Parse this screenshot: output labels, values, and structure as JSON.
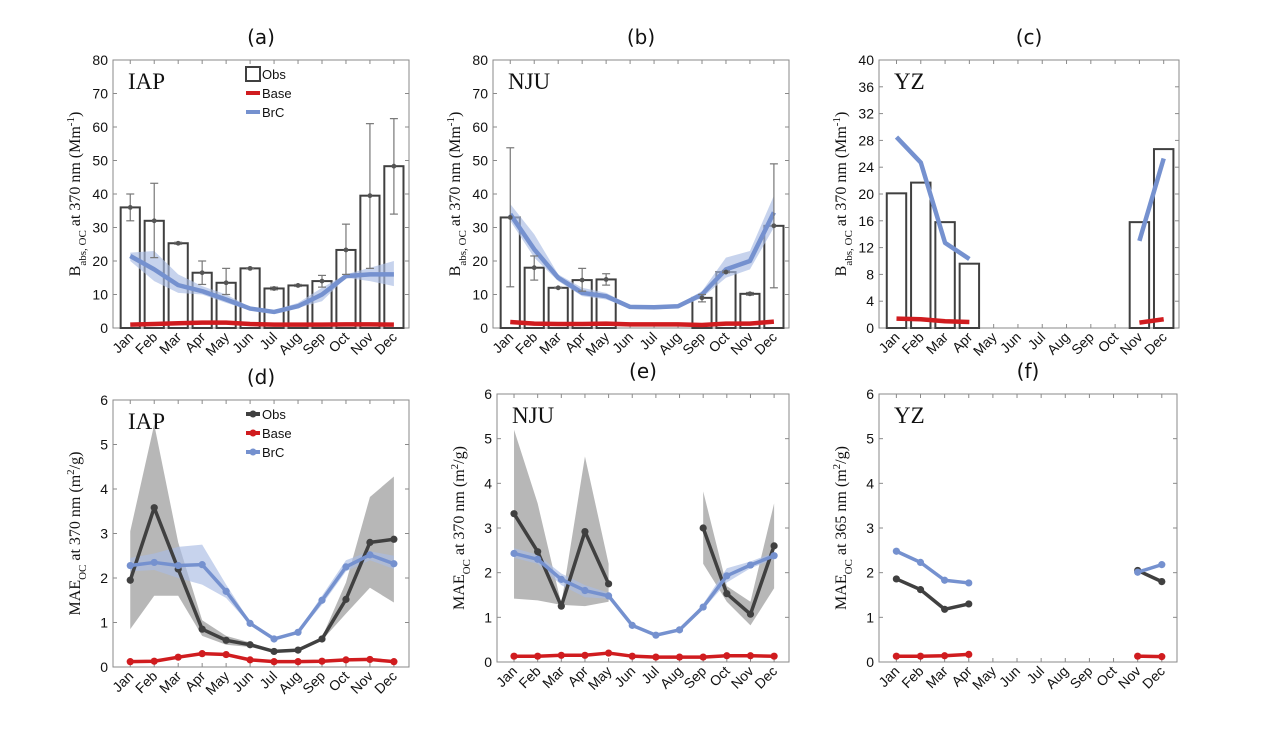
{
  "colors": {
    "obs": "#404040",
    "obs_band": "#b3b3b3",
    "base": "#d01c1f",
    "brc": "#7591cf",
    "brc_band": "#a9bbe3",
    "axis": "#8a8a8a"
  },
  "legend": {
    "obs": "Obs",
    "base": "Base",
    "brc": "BrC"
  },
  "chart_data": [
    {
      "id": "a",
      "type": "bar",
      "title": "(a)",
      "site": "IAP",
      "ylabel_main": "B",
      "ylabel_sub": "abs, OC",
      "ylabel_rest": " at 370 nm (Mm",
      "ylabel_sup": "-1",
      "ylabel_end": ")",
      "ylim": [
        0,
        80
      ],
      "yticks": [
        0,
        10,
        20,
        30,
        40,
        50,
        60,
        70,
        80
      ],
      "categories": [
        "Jan",
        "Feb",
        "Mar",
        "Apr",
        "May",
        "Jun",
        "Jul",
        "Aug",
        "Sep",
        "Oct",
        "Nov",
        "Dec"
      ],
      "legend_style": "bar",
      "obs": [
        36,
        32,
        25.3,
        16.5,
        13.5,
        17.8,
        11.8,
        12.7,
        14,
        23.3,
        39.5,
        48.3
      ],
      "obs_err_low": [
        32,
        21,
        25,
        13,
        10,
        17.6,
        11.4,
        12.4,
        12.2,
        16,
        17.8,
        34
      ],
      "obs_err_high": [
        40,
        43.2,
        25.6,
        20,
        17.8,
        18,
        12.2,
        13,
        15.7,
        31,
        61,
        62.5
      ],
      "brc": [
        21.5,
        17.5,
        12.8,
        11,
        8.5,
        5.8,
        4.8,
        6.5,
        10,
        15.5,
        16,
        16
      ],
      "brc_low": [
        20,
        14,
        10.5,
        10,
        7.5,
        5.3,
        4.2,
        6,
        8,
        15,
        14,
        12.5
      ],
      "brc_high": [
        22.5,
        23,
        16,
        12.5,
        10,
        6.3,
        5.3,
        7.5,
        12,
        16,
        18,
        20
      ],
      "base": [
        1,
        1.2,
        1.4,
        1.6,
        1.6,
        1.2,
        1,
        1,
        1,
        1.1,
        1.1,
        1
      ]
    },
    {
      "id": "b",
      "type": "bar",
      "title": "(b)",
      "site": "NJU",
      "ylabel_main": "B",
      "ylabel_sub": "abs, OC",
      "ylabel_rest": " at 370 nm (Mm",
      "ylabel_sup": "-1",
      "ylabel_end": ")",
      "ylim": [
        0,
        80
      ],
      "yticks": [
        0,
        10,
        20,
        30,
        40,
        50,
        60,
        70,
        80
      ],
      "categories": [
        "Jan",
        "Feb",
        "Mar",
        "Apr",
        "May",
        "Jun",
        "Jul",
        "Aug",
        "Sep",
        "Oct",
        "Nov",
        "Dec"
      ],
      "legend_style": "none",
      "obs": [
        33,
        18,
        12,
        14.3,
        14.5,
        null,
        null,
        null,
        9,
        16.7,
        10.2,
        30.5
      ],
      "obs_err_low": [
        12.3,
        14.3,
        11.8,
        11,
        12.8,
        null,
        null,
        null,
        7.8,
        16.5,
        9.8,
        12
      ],
      "obs_err_high": [
        53.8,
        21.5,
        12.2,
        17.8,
        16.2,
        null,
        null,
        null,
        10,
        17,
        10.6,
        49
      ],
      "brc": [
        34,
        23.5,
        15,
        10.5,
        9.5,
        6.3,
        6.2,
        6.5,
        10,
        17.5,
        20,
        34.5
      ],
      "brc_low": [
        32,
        21,
        14,
        9.5,
        8.5,
        6,
        5.5,
        6,
        9,
        15,
        17.5,
        30
      ],
      "brc_high": [
        37,
        28,
        16,
        12,
        10.5,
        6.8,
        6.8,
        7,
        11,
        21,
        23,
        39.5
      ],
      "base": [
        1.8,
        1.3,
        1.2,
        1.2,
        1.3,
        1.1,
        1.1,
        1.1,
        0.9,
        1.3,
        1.3,
        1.9
      ]
    },
    {
      "id": "c",
      "type": "bar",
      "title": "(c)",
      "site": "YZ",
      "ylabel_main": "B",
      "ylabel_sub": "abs, OC",
      "ylabel_rest": " at 370 nm (Mm",
      "ylabel_sup": "-1",
      "ylabel_end": ")",
      "ylim": [
        0,
        40
      ],
      "yticks": [
        0,
        4,
        8,
        12,
        16,
        20,
        24,
        28,
        32,
        36,
        40
      ],
      "categories": [
        "Jan",
        "Feb",
        "Mar",
        "Apr",
        "May",
        "Jun",
        "Jul",
        "Aug",
        "Sep",
        "Oct",
        "Nov",
        "Dec"
      ],
      "legend_style": "none",
      "obs": [
        20.1,
        21.7,
        15.8,
        9.6,
        null,
        null,
        null,
        null,
        null,
        null,
        15.8,
        26.7
      ],
      "obs_err_low": null,
      "obs_err_high": null,
      "brc": [
        28.5,
        24.7,
        12.7,
        10.3,
        null,
        null,
        null,
        null,
        null,
        null,
        13,
        25.3
      ],
      "brc_low": null,
      "brc_high": null,
      "base": [
        1.4,
        1.3,
        1.0,
        0.9,
        null,
        null,
        null,
        null,
        null,
        null,
        0.8,
        1.3
      ]
    },
    {
      "id": "d",
      "type": "line",
      "title": "(d)",
      "site": "IAP",
      "ylabel_main": "MAE",
      "ylabel_sub": "OC",
      "ylabel_rest": " at 370 nm (m",
      "ylabel_sup": "2",
      "ylabel_end": "/g)",
      "ylim": [
        0,
        6
      ],
      "yticks": [
        0,
        1,
        2,
        3,
        4,
        5,
        6
      ],
      "categories": [
        "Jan",
        "Feb",
        "Mar",
        "Apr",
        "May",
        "Jun",
        "Jul",
        "Aug",
        "Sep",
        "Oct",
        "Nov",
        "Dec"
      ],
      "legend_style": "line",
      "obs": [
        1.95,
        3.58,
        2.2,
        0.85,
        0.6,
        0.5,
        0.35,
        0.38,
        0.63,
        1.52,
        2.8,
        2.87
      ],
      "obs_low": [
        0.85,
        1.6,
        1.6,
        0.7,
        0.5,
        0.45,
        0.33,
        0.36,
        0.6,
        1.2,
        1.78,
        1.45
      ],
      "obs_high": [
        3.05,
        5.45,
        2.8,
        1.05,
        0.7,
        0.55,
        0.38,
        0.4,
        0.67,
        1.9,
        3.82,
        4.28
      ],
      "brc": [
        2.28,
        2.35,
        2.28,
        2.3,
        1.7,
        0.98,
        0.63,
        0.78,
        1.5,
        2.25,
        2.52,
        2.32
      ],
      "brc_low": [
        2.15,
        2.18,
        2.0,
        1.85,
        1.55,
        0.95,
        0.6,
        0.75,
        1.4,
        2.15,
        2.4,
        2.2
      ],
      "brc_high": [
        2.45,
        2.55,
        2.7,
        2.75,
        1.85,
        1.02,
        0.66,
        0.81,
        1.6,
        2.4,
        2.6,
        2.5
      ],
      "base": [
        0.12,
        0.13,
        0.22,
        0.3,
        0.28,
        0.16,
        0.12,
        0.12,
        0.13,
        0.16,
        0.17,
        0.12
      ]
    },
    {
      "id": "e",
      "type": "line",
      "title": "(e)",
      "site": "NJU",
      "ylabel_main": "MAE",
      "ylabel_sub": "OC",
      "ylabel_rest": " at 370 nm (m",
      "ylabel_sup": "2",
      "ylabel_end": "/g)",
      "ylim": [
        0,
        6
      ],
      "yticks": [
        0,
        1,
        2,
        3,
        4,
        5,
        6
      ],
      "categories": [
        "Jan",
        "Feb",
        "Mar",
        "Apr",
        "May",
        "Jun",
        "Jul",
        "Aug",
        "Sep",
        "Oct",
        "Nov",
        "Dec"
      ],
      "legend_style": "none",
      "obs": [
        3.32,
        2.47,
        1.25,
        2.92,
        1.75,
        null,
        null,
        null,
        3.0,
        1.53,
        1.07,
        2.6
      ],
      "obs_low": [
        1.42,
        1.38,
        1.28,
        1.25,
        1.35,
        null,
        null,
        null,
        2.2,
        1.35,
        0.82,
        1.65
      ],
      "obs_high": [
        5.2,
        3.55,
        1.3,
        4.6,
        2.2,
        null,
        null,
        null,
        3.82,
        1.7,
        1.35,
        3.55
      ],
      "brc": [
        2.43,
        2.3,
        1.85,
        1.6,
        1.48,
        0.82,
        0.6,
        0.72,
        1.23,
        1.93,
        2.17,
        2.38
      ],
      "brc_low": [
        2.33,
        2.2,
        1.72,
        1.45,
        1.42,
        0.8,
        0.58,
        0.7,
        1.18,
        1.78,
        2.1,
        2.3
      ],
      "brc_high": [
        2.55,
        2.4,
        1.98,
        1.72,
        1.55,
        0.85,
        0.62,
        0.74,
        1.3,
        2.1,
        2.25,
        2.45
      ],
      "base": [
        0.13,
        0.13,
        0.15,
        0.15,
        0.2,
        0.13,
        0.11,
        0.11,
        0.11,
        0.14,
        0.14,
        0.13
      ]
    },
    {
      "id": "f",
      "type": "line",
      "title": "(f)",
      "site": "YZ",
      "ylabel_main": "MAE",
      "ylabel_sub": "OC",
      "ylabel_rest": " at 365 nm (m",
      "ylabel_sup": "2",
      "ylabel_end": "/g)",
      "ylim": [
        0,
        6
      ],
      "yticks": [
        0,
        1,
        2,
        3,
        4,
        5,
        6
      ],
      "categories": [
        "Jan",
        "Feb",
        "Mar",
        "Apr",
        "May",
        "Jun",
        "Jul",
        "Aug",
        "Sep",
        "Oct",
        "Nov",
        "Dec"
      ],
      "legend_style": "none",
      "obs": [
        1.86,
        1.62,
        1.18,
        1.3,
        null,
        null,
        null,
        null,
        null,
        null,
        2.05,
        1.8
      ],
      "obs_low": null,
      "obs_high": null,
      "brc": [
        2.48,
        2.23,
        1.83,
        1.77,
        null,
        null,
        null,
        null,
        null,
        null,
        2.01,
        2.18
      ],
      "brc_low": null,
      "brc_high": null,
      "base": [
        0.13,
        0.13,
        0.14,
        0.17,
        null,
        null,
        null,
        null,
        null,
        null,
        0.13,
        0.12
      ]
    }
  ]
}
